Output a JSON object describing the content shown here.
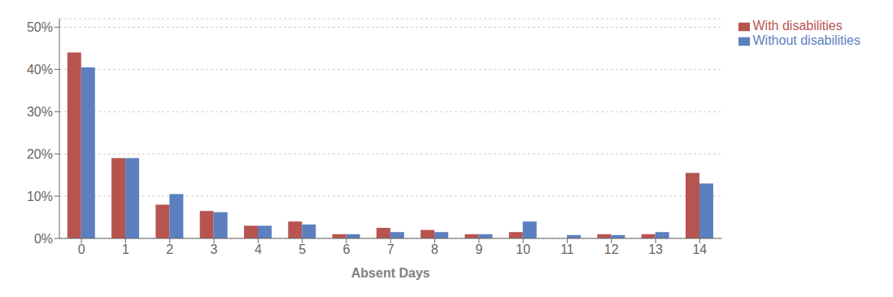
{
  "chart_data": {
    "type": "bar",
    "xlabel": "Absent Days",
    "categories": [
      0,
      1,
      2,
      3,
      4,
      5,
      6,
      7,
      8,
      9,
      10,
      11,
      12,
      13,
      14
    ],
    "series": [
      {
        "name": "With disabilities",
        "color": "#B85450",
        "values": [
          0.44,
          0.19,
          0.08,
          0.065,
          0.03,
          0.04,
          0.01,
          0.025,
          0.02,
          0.01,
          0.015,
          0.0,
          0.01,
          0.01,
          0.155
        ]
      },
      {
        "name": "Without disabilities",
        "color": "#5B7FBF",
        "values": [
          0.405,
          0.19,
          0.105,
          0.062,
          0.03,
          0.033,
          0.01,
          0.015,
          0.015,
          0.01,
          0.04,
          0.008,
          0.008,
          0.015,
          0.13
        ]
      }
    ],
    "ylim": [
      0,
      0.52
    ],
    "yticks": [
      {
        "value": 0.0,
        "label": "0%"
      },
      {
        "value": 0.1,
        "label": "10%"
      },
      {
        "value": 0.2,
        "label": "20%"
      },
      {
        "value": 0.3,
        "label": "30%"
      },
      {
        "value": 0.4,
        "label": "40%"
      },
      {
        "value": 0.5,
        "label": "50%"
      }
    ],
    "grid": true,
    "legend": "right"
  }
}
